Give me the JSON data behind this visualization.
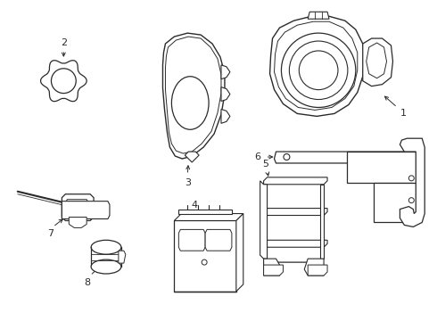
{
  "background_color": "#ffffff",
  "line_color": "#2a2a2a",
  "label_color": "#1a1a1a",
  "lw": 0.75
}
